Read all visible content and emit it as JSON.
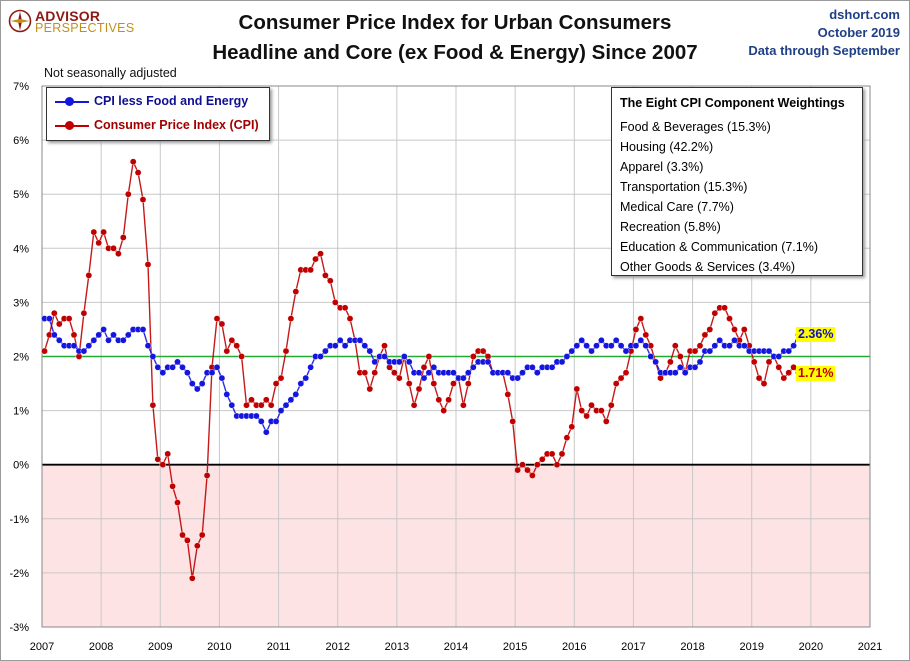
{
  "header": {
    "logo_top": "ADVISOR",
    "logo_bottom": "PERSPECTIVES",
    "title_line1": "Consumer Price Index for Urban Consumers",
    "title_line2": "Headline and Core (ex Food & Energy) Since 2007",
    "source": "dshort.com",
    "date": "October 2019",
    "data_through": "Data through September",
    "note": "Not seasonally adjusted"
  },
  "colors": {
    "core": "#1515e0",
    "cpi": "#c00000",
    "reference_line": "#22aa33",
    "negative_band": "#fde3e3",
    "grid": "#c8c8c8"
  },
  "legend": {
    "core_label": "CPI less Food and Energy",
    "cpi_label": "Consumer Price Index (CPI)"
  },
  "weights_box": {
    "title": "The Eight CPI Component Weightings",
    "items": [
      "Food & Beverages (15.3%)",
      "Housing (42.2%)",
      "Apparel (3.3%)",
      "Transportation (15.3%)",
      "Medical Care (7.7%)",
      "Recreation (5.8%)",
      "Education & Communication (7.1%)",
      "Other Goods & Services (3.4%)"
    ]
  },
  "latest_labels": {
    "core": "2.36%",
    "cpi": "1.71%"
  },
  "chart_data": {
    "type": "line",
    "title": "Consumer Price Index for Urban Consumers",
    "subtitle": "Headline and Core (ex Food & Energy) Since 2007",
    "x_tick_labels": [
      "2007",
      "2008",
      "2009",
      "2010",
      "2011",
      "2012",
      "2013",
      "2014",
      "2015",
      "2016",
      "2017",
      "2018",
      "2019",
      "2020",
      "2021"
    ],
    "y_tick_labels": [
      "-3%",
      "-2%",
      "-1%",
      "0%",
      "1%",
      "2%",
      "3%",
      "4%",
      "5%",
      "6%",
      "7%"
    ],
    "xlim": [
      "2007-01",
      "2021-01"
    ],
    "ylim": [
      -3,
      7
    ],
    "y_unit": "%",
    "grid": true,
    "legend_position": "top-left",
    "reference_line_y": 2,
    "x_start_month": "2007-01",
    "series": [
      {
        "name": "CPI less Food and Energy",
        "values": [
          2.7,
          2.7,
          2.4,
          2.3,
          2.2,
          2.2,
          2.2,
          2.1,
          2.1,
          2.2,
          2.3,
          2.4,
          2.5,
          2.3,
          2.4,
          2.3,
          2.3,
          2.4,
          2.5,
          2.5,
          2.5,
          2.2,
          2.0,
          1.8,
          1.7,
          1.8,
          1.8,
          1.9,
          1.8,
          1.7,
          1.5,
          1.4,
          1.5,
          1.7,
          1.7,
          1.8,
          1.6,
          1.3,
          1.1,
          0.9,
          0.9,
          0.9,
          0.9,
          0.9,
          0.8,
          0.6,
          0.8,
          0.8,
          1.0,
          1.1,
          1.2,
          1.3,
          1.5,
          1.6,
          1.8,
          2.0,
          2.0,
          2.1,
          2.2,
          2.2,
          2.3,
          2.2,
          2.3,
          2.3,
          2.3,
          2.2,
          2.1,
          1.9,
          2.0,
          2.0,
          1.9,
          1.9,
          1.9,
          2.0,
          1.9,
          1.7,
          1.7,
          1.6,
          1.7,
          1.8,
          1.7,
          1.7,
          1.7,
          1.7,
          1.6,
          1.6,
          1.7,
          1.8,
          1.9,
          1.9,
          1.9,
          1.7,
          1.7,
          1.7,
          1.7,
          1.6,
          1.6,
          1.7,
          1.8,
          1.8,
          1.7,
          1.8,
          1.8,
          1.8,
          1.9,
          1.9,
          2.0,
          2.1,
          2.2,
          2.3,
          2.2,
          2.1,
          2.2,
          2.3,
          2.2,
          2.2,
          2.3,
          2.2,
          2.1,
          2.2,
          2.2,
          2.3,
          2.2,
          2.0,
          1.9,
          1.7,
          1.7,
          1.7,
          1.7,
          1.8,
          1.7,
          1.8,
          1.8,
          1.9,
          2.1,
          2.1,
          2.2,
          2.3,
          2.2,
          2.2,
          2.3,
          2.2,
          2.2,
          2.1,
          2.1,
          2.1,
          2.1,
          2.1,
          2.0,
          2.0,
          2.1,
          2.1,
          2.2,
          2.4,
          2.4
        ],
        "latest": 2.36
      },
      {
        "name": "Consumer Price Index (CPI)",
        "values": [
          2.1,
          2.4,
          2.8,
          2.6,
          2.7,
          2.7,
          2.4,
          2.0,
          2.8,
          3.5,
          4.3,
          4.1,
          4.3,
          4.0,
          4.0,
          3.9,
          4.2,
          5.0,
          5.6,
          5.4,
          4.9,
          3.7,
          1.1,
          0.1,
          0.0,
          0.2,
          -0.4,
          -0.7,
          -1.3,
          -1.4,
          -2.1,
          -1.5,
          -1.3,
          -0.2,
          1.8,
          2.7,
          2.6,
          2.1,
          2.3,
          2.2,
          2.0,
          1.1,
          1.2,
          1.1,
          1.1,
          1.2,
          1.1,
          1.5,
          1.6,
          2.1,
          2.7,
          3.2,
          3.6,
          3.6,
          3.6,
          3.8,
          3.9,
          3.5,
          3.4,
          3.0,
          2.9,
          2.9,
          2.7,
          2.3,
          1.7,
          1.7,
          1.4,
          1.7,
          2.0,
          2.2,
          1.8,
          1.7,
          1.6,
          2.0,
          1.5,
          1.1,
          1.4,
          1.8,
          2.0,
          1.5,
          1.2,
          1.0,
          1.2,
          1.5,
          1.6,
          1.1,
          1.5,
          2.0,
          2.1,
          2.1,
          2.0,
          1.7,
          1.7,
          1.7,
          1.3,
          0.8,
          -0.1,
          0.0,
          -0.1,
          -0.2,
          0.0,
          0.1,
          0.2,
          0.2,
          0.0,
          0.2,
          0.5,
          0.7,
          1.4,
          1.0,
          0.9,
          1.1,
          1.0,
          1.0,
          0.8,
          1.1,
          1.5,
          1.6,
          1.7,
          2.1,
          2.5,
          2.7,
          2.4,
          2.2,
          1.9,
          1.6,
          1.7,
          1.9,
          2.2,
          2.0,
          1.7,
          2.1,
          2.1,
          2.2,
          2.4,
          2.5,
          2.8,
          2.9,
          2.9,
          2.7,
          2.5,
          2.3,
          2.5,
          2.2,
          1.9,
          1.6,
          1.5,
          1.9,
          2.0,
          1.8,
          1.6,
          1.7,
          1.8,
          1.7,
          1.7
        ],
        "latest": 1.71
      }
    ]
  }
}
